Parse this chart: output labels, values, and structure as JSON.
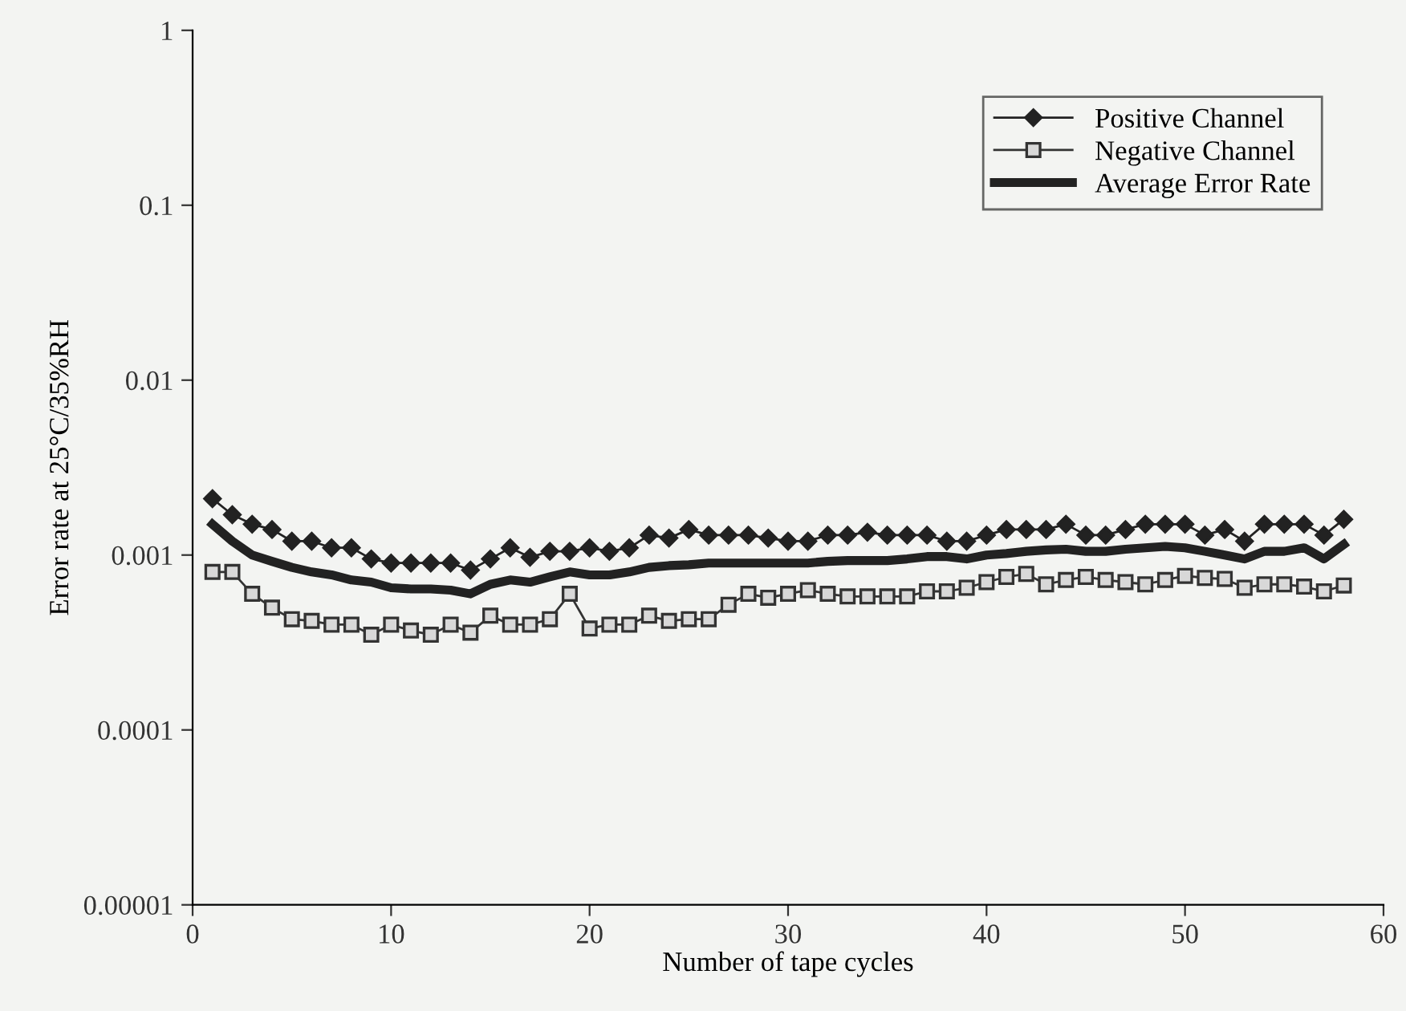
{
  "chart_data": {
    "type": "line",
    "xlabel": "Number of tape cycles",
    "ylabel": "Error rate at 25°C/35%RH",
    "x": [
      1,
      2,
      3,
      4,
      5,
      6,
      7,
      8,
      9,
      10,
      11,
      12,
      13,
      14,
      15,
      16,
      17,
      18,
      19,
      20,
      21,
      22,
      23,
      24,
      25,
      26,
      27,
      28,
      29,
      30,
      31,
      32,
      33,
      34,
      35,
      36,
      37,
      38,
      39,
      40,
      41,
      42,
      43,
      44,
      45,
      46,
      47,
      48,
      49,
      50,
      51,
      52,
      53,
      54,
      55,
      56,
      57,
      58
    ],
    "series": [
      {
        "name": "Positive Channel",
        "color": "#222222",
        "marker": "diamond",
        "values": [
          0.0021,
          0.0017,
          0.0015,
          0.0014,
          0.0012,
          0.0012,
          0.0011,
          0.0011,
          0.00095,
          0.0009,
          0.0009,
          0.0009,
          0.0009,
          0.00082,
          0.00095,
          0.0011,
          0.00097,
          0.00105,
          0.00105,
          0.0011,
          0.00105,
          0.0011,
          0.0013,
          0.00125,
          0.0014,
          0.0013,
          0.0013,
          0.0013,
          0.00125,
          0.0012,
          0.0012,
          0.0013,
          0.0013,
          0.00135,
          0.0013,
          0.0013,
          0.0013,
          0.0012,
          0.0012,
          0.0013,
          0.0014,
          0.0014,
          0.0014,
          0.0015,
          0.0013,
          0.0013,
          0.0014,
          0.0015,
          0.0015,
          0.0015,
          0.0013,
          0.0014,
          0.0012,
          0.0015,
          0.0015,
          0.0015,
          0.0013,
          0.0016
        ]
      },
      {
        "name": "Negative Channel",
        "color": "#333333",
        "marker": "square",
        "values": [
          0.0008,
          0.0008,
          0.0006,
          0.0005,
          0.00043,
          0.00042,
          0.0004,
          0.0004,
          0.00035,
          0.0004,
          0.00037,
          0.00035,
          0.0004,
          0.00036,
          0.00045,
          0.0004,
          0.0004,
          0.00043,
          0.0006,
          0.00038,
          0.0004,
          0.0004,
          0.00045,
          0.00042,
          0.00043,
          0.00043,
          0.00052,
          0.0006,
          0.00057,
          0.0006,
          0.00063,
          0.0006,
          0.00058,
          0.00058,
          0.00058,
          0.00058,
          0.00062,
          0.00062,
          0.00065,
          0.0007,
          0.00075,
          0.00078,
          0.00068,
          0.00072,
          0.00075,
          0.00072,
          0.0007,
          0.00068,
          0.00072,
          0.00076,
          0.00074,
          0.00073,
          0.00065,
          0.00068,
          0.00068,
          0.00066,
          0.00062,
          0.00067
        ]
      },
      {
        "name": "Average Error Rate",
        "color": "#222222",
        "marker": "none",
        "values": [
          0.0015,
          0.0012,
          0.001,
          0.00092,
          0.00085,
          0.0008,
          0.00077,
          0.00072,
          0.0007,
          0.00065,
          0.00064,
          0.00064,
          0.00063,
          0.0006,
          0.00068,
          0.00072,
          0.0007,
          0.00075,
          0.0008,
          0.00077,
          0.00077,
          0.0008,
          0.00085,
          0.00087,
          0.00088,
          0.0009,
          0.0009,
          0.0009,
          0.0009,
          0.0009,
          0.0009,
          0.00092,
          0.00093,
          0.00093,
          0.00093,
          0.00095,
          0.00098,
          0.00098,
          0.00095,
          0.001,
          0.00102,
          0.00105,
          0.00107,
          0.00108,
          0.00105,
          0.00105,
          0.00108,
          0.0011,
          0.00112,
          0.0011,
          0.00105,
          0.001,
          0.00095,
          0.00105,
          0.00105,
          0.0011,
          0.00095,
          0.00115
        ]
      }
    ],
    "log": "y",
    "xlim": [
      0,
      60
    ],
    "xticks": [
      0,
      10,
      20,
      30,
      40,
      50,
      60
    ],
    "ylim": [
      1e-05,
      1
    ],
    "yticks": [
      {
        "value": 1e-05,
        "label": "0.00001"
      },
      0.0001,
      0.001,
      0.01,
      0.1,
      1
    ],
    "grid": false,
    "legend": "top right"
  }
}
